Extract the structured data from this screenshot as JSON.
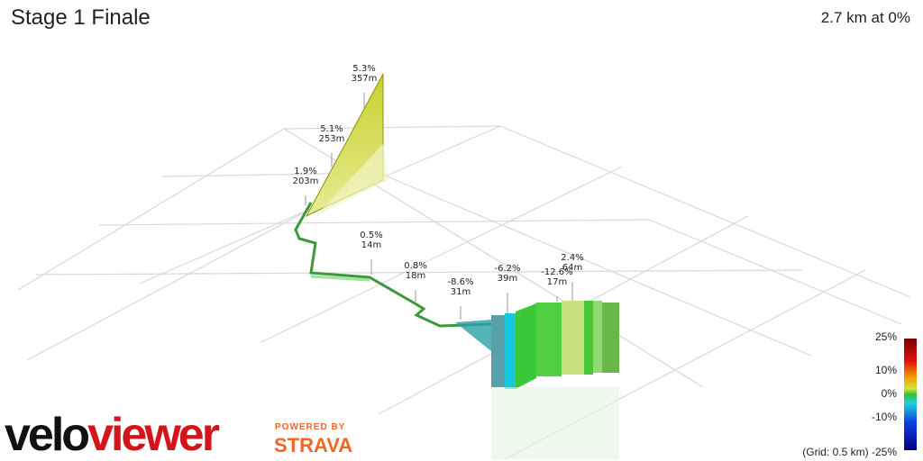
{
  "header": {
    "title": "Stage 1 Finale",
    "summary": "2.7 km at 0%"
  },
  "annotations": [
    {
      "grade": "5.3%",
      "distance": "357m"
    },
    {
      "grade": "5.1%",
      "distance": "253m"
    },
    {
      "grade": "1.9%",
      "distance": "203m"
    },
    {
      "grade": "0.5%",
      "distance": "14m"
    },
    {
      "grade": "0.8%",
      "distance": "18m"
    },
    {
      "grade": "-8.6%",
      "distance": "31m"
    },
    {
      "grade": "-6.2%",
      "distance": "39m"
    },
    {
      "grade": "-12.6%",
      "distance": "17m"
    },
    {
      "grade": "2.4%",
      "distance": "64m"
    }
  ],
  "legend": {
    "ticks": [
      "25%",
      "10%",
      "0%",
      "-10%"
    ],
    "grid_note": "(Grid: 0.5 km)",
    "bottom": "-25%"
  },
  "branding": {
    "logo_left": "velo",
    "logo_right": "viewer",
    "powered": "POWERED BY",
    "partner": "STRAVA"
  }
}
